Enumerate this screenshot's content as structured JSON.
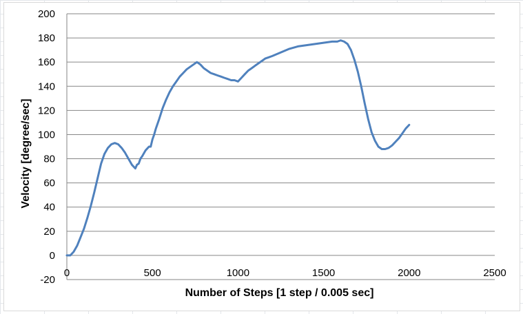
{
  "chart_data": {
    "type": "line",
    "title": "",
    "xlabel": "Number of Steps [1 step / 0.005 sec]",
    "ylabel": "Velocity [degree/sec]",
    "xlim": [
      0,
      2500
    ],
    "ylim": [
      -20,
      200
    ],
    "xticks": [
      0,
      500,
      1000,
      1500,
      2000,
      2500
    ],
    "yticks": [
      -20,
      0,
      20,
      40,
      60,
      80,
      100,
      120,
      140,
      160,
      180,
      200
    ],
    "xtick_labels": [
      "0",
      "500",
      "1000",
      "1500",
      "2000",
      "2500"
    ],
    "ytick_labels": [
      "-20",
      "0",
      "20",
      "40",
      "60",
      "80",
      "100",
      "120",
      "140",
      "160",
      "180",
      "200"
    ],
    "grid": "horizontal",
    "legend": "none",
    "color": "#4F81BD",
    "series": [
      {
        "x": [
          0,
          20,
          40,
          60,
          80,
          100,
          120,
          140,
          160,
          180,
          200,
          220,
          240,
          260,
          280,
          300,
          320,
          340,
          360,
          380,
          400,
          410,
          420,
          430,
          440,
          460,
          480,
          490,
          500,
          510,
          520,
          540,
          560,
          580,
          600,
          620,
          640,
          660,
          680,
          700,
          720,
          740,
          760,
          780,
          800,
          820,
          840,
          860,
          880,
          900,
          920,
          940,
          960,
          980,
          1000,
          1020,
          1040,
          1060,
          1080,
          1100,
          1120,
          1140,
          1160,
          1180,
          1200,
          1250,
          1300,
          1350,
          1400,
          1450,
          1500,
          1550,
          1580,
          1600,
          1620,
          1640,
          1660,
          1680,
          1700,
          1720,
          1740,
          1760,
          1780,
          1800,
          1820,
          1840,
          1860,
          1880,
          1900,
          1920,
          1940,
          1960,
          1980,
          2000
        ],
        "y": [
          0,
          0,
          3,
          8,
          15,
          22,
          31,
          41,
          52,
          64,
          76,
          84,
          89,
          92,
          93,
          92,
          89,
          85,
          80,
          75,
          72,
          75,
          76,
          80,
          82,
          87,
          90,
          90,
          96,
          100,
          105,
          113,
          122,
          129,
          135,
          140,
          144,
          148,
          151,
          154,
          156,
          158,
          160,
          158,
          155,
          153,
          151,
          150,
          149,
          148,
          147,
          146,
          145,
          145,
          144,
          147,
          150,
          153,
          155,
          157,
          159,
          161,
          163,
          164,
          165,
          168,
          171,
          173,
          174,
          175,
          176,
          177,
          177,
          178,
          177,
          175,
          170,
          162,
          152,
          140,
          126,
          113,
          102,
          95,
          90,
          88,
          88,
          89,
          91,
          94,
          97,
          101,
          105,
          108
        ]
      }
    ]
  }
}
